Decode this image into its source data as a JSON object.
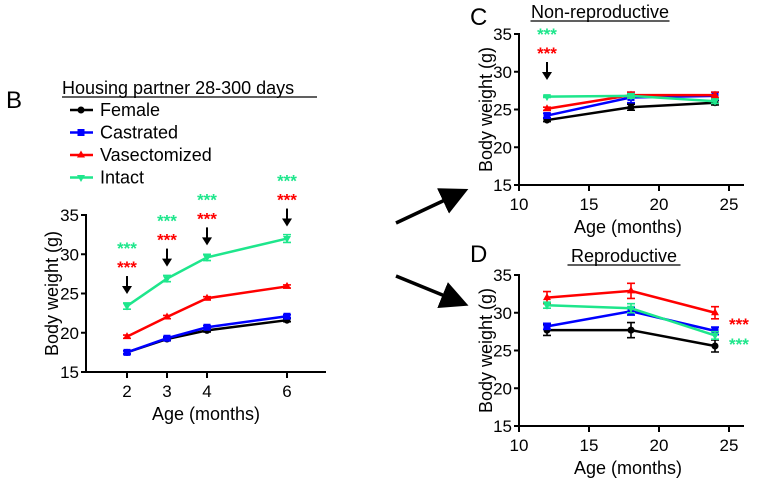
{
  "colors": {
    "Female": "#000000",
    "Castrated": "#0000ff",
    "Vasectomized": "#ff0000",
    "Intact": "#1ee68c"
  },
  "chart_data": [
    {
      "panel": "B",
      "type": "line",
      "title": "Housing partner 28-300 days",
      "xlabel": "Age (months)",
      "ylabel": "Body weight (g)",
      "x": [
        2,
        3,
        4,
        6
      ],
      "xticks": [
        2,
        3,
        4,
        6
      ],
      "yticks": [
        15,
        20,
        25,
        30,
        35
      ],
      "ylim": [
        15,
        35
      ],
      "legend": "top-left",
      "series": [
        {
          "name": "Female",
          "marker": "circle",
          "values": [
            17.5,
            19.2,
            20.3,
            21.6
          ],
          "err": [
            0.2,
            0.2,
            0.2,
            0.2
          ]
        },
        {
          "name": "Castrated",
          "marker": "square",
          "values": [
            17.5,
            19.3,
            20.7,
            22.1
          ],
          "err": [
            0.2,
            0.2,
            0.2,
            0.2
          ]
        },
        {
          "name": "Vasectomized",
          "marker": "triangle-up",
          "values": [
            19.5,
            22.0,
            24.4,
            25.9
          ],
          "err": [
            0.2,
            0.2,
            0.2,
            0.2
          ]
        },
        {
          "name": "Intact",
          "marker": "triangle-down",
          "values": [
            23.4,
            26.9,
            29.6,
            32.0
          ],
          "err": [
            0.4,
            0.4,
            0.4,
            0.5
          ]
        }
      ],
      "annotations": [
        {
          "x": 2,
          "green": "***",
          "red": "***",
          "arrow": true
        },
        {
          "x": 3,
          "green": "***",
          "red": "***",
          "arrow": true
        },
        {
          "x": 4,
          "green": "***",
          "red": "***",
          "arrow": true
        },
        {
          "x": 6,
          "green": "***",
          "red": "***",
          "arrow": true
        }
      ]
    },
    {
      "panel": "C",
      "type": "line",
      "title": "Non-reproductive",
      "xlabel": "Age (months)",
      "ylabel": "Body weight (g)",
      "x": [
        12,
        18,
        24
      ],
      "xlim": [
        10,
        26
      ],
      "xticks": [
        10,
        15,
        20,
        25
      ],
      "yticks": [
        15,
        20,
        25,
        30,
        35
      ],
      "ylim": [
        15,
        35
      ],
      "series": [
        {
          "name": "Female",
          "marker": "circle",
          "values": [
            23.6,
            25.3,
            25.9
          ],
          "err": [
            0.2,
            0.4,
            0.3
          ]
        },
        {
          "name": "Castrated",
          "marker": "square",
          "values": [
            24.2,
            26.6,
            26.8
          ],
          "err": [
            0.3,
            0.7,
            0.5
          ]
        },
        {
          "name": "Vasectomized",
          "marker": "triangle-up",
          "values": [
            25.1,
            26.9,
            26.9
          ],
          "err": [
            0.2,
            0.4,
            0.4
          ]
        },
        {
          "name": "Intact",
          "marker": "triangle-down",
          "values": [
            26.7,
            26.8,
            26.1
          ],
          "err": [
            0.1,
            0.3,
            0.3
          ]
        }
      ],
      "annotations": [
        {
          "x": 12,
          "green": "***",
          "red": "***",
          "arrow": true
        }
      ]
    },
    {
      "panel": "D",
      "type": "line",
      "title": "Reproductive",
      "xlabel": "Age (months)",
      "ylabel": "Body weight (g)",
      "x": [
        12,
        18,
        24
      ],
      "xlim": [
        10,
        26
      ],
      "xticks": [
        10,
        15,
        20,
        25
      ],
      "yticks": [
        15,
        20,
        25,
        30,
        35
      ],
      "ylim": [
        15,
        35
      ],
      "series": [
        {
          "name": "Female",
          "marker": "circle",
          "values": [
            27.7,
            27.7,
            25.6
          ],
          "err": [
            0.7,
            1.0,
            0.8
          ]
        },
        {
          "name": "Castrated",
          "marker": "square",
          "values": [
            28.2,
            30.2,
            27.6
          ],
          "err": [
            0.4,
            0.5,
            0.5
          ]
        },
        {
          "name": "Vasectomized",
          "marker": "triangle-up",
          "values": [
            32.0,
            32.9,
            30.0
          ],
          "err": [
            0.8,
            1.0,
            0.8
          ]
        },
        {
          "name": "Intact",
          "marker": "triangle-down",
          "values": [
            31.0,
            30.6,
            27.0
          ],
          "err": [
            0.4,
            0.6,
            0.5
          ]
        }
      ],
      "side_annotations": [
        {
          "color": "red",
          "text": "***"
        },
        {
          "color": "green",
          "text": "***"
        }
      ]
    }
  ]
}
